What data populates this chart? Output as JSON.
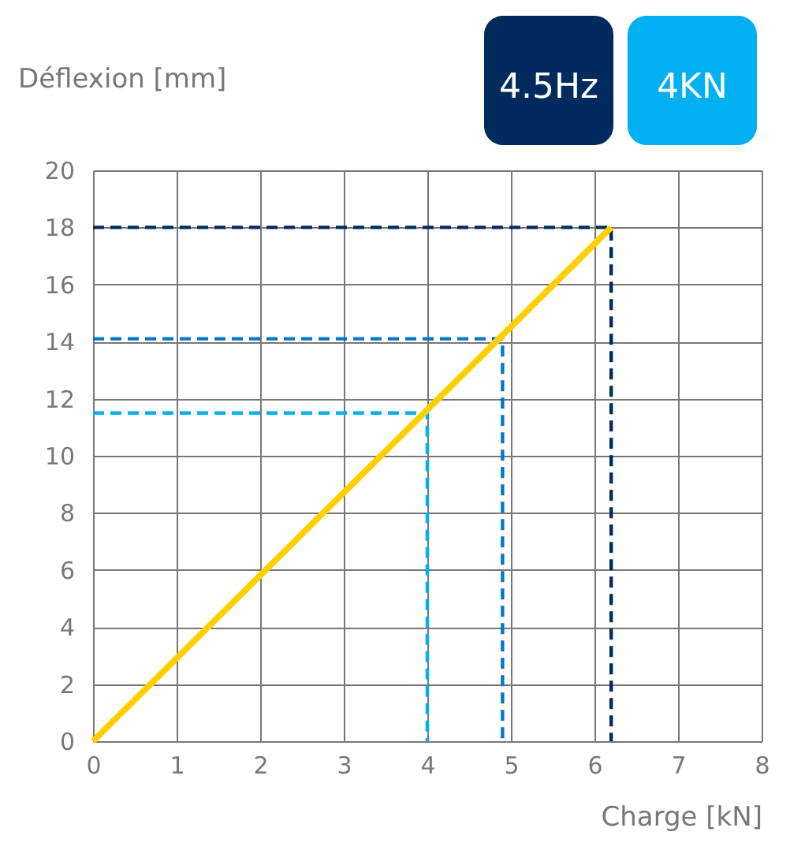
{
  "chart_data": {
    "type": "line",
    "xlabel": "Charge [kN]",
    "ylabel": "Déflexion [mm]",
    "xlim": [
      0,
      8
    ],
    "xticks": [
      0,
      1,
      2,
      3,
      4,
      5,
      6,
      7,
      8
    ],
    "ylim": [
      0,
      20
    ],
    "yticks": [
      0,
      2,
      4,
      6,
      8,
      10,
      12,
      14,
      16,
      18,
      20
    ],
    "grid": true,
    "series": [
      {
        "color": "#002b5c",
        "line_style": "dashed",
        "x": [
          0,
          6.2,
          6.2
        ],
        "values": [
          18,
          18,
          0
        ]
      },
      {
        "color": "#0077c8",
        "line_style": "dashed",
        "x": [
          0,
          4.9,
          4.9
        ],
        "values": [
          14.1,
          14.1,
          0
        ]
      },
      {
        "color": "#00b0f0",
        "line_style": "dashed",
        "x": [
          0,
          4.0,
          4.0
        ],
        "values": [
          11.5,
          11.5,
          0
        ]
      },
      {
        "color": "#ffd000",
        "line_style": "solid",
        "x": [
          0,
          6.2
        ],
        "values": [
          0,
          18
        ]
      }
    ],
    "annotations": [
      "4.5Hz",
      "4KN"
    ]
  }
}
